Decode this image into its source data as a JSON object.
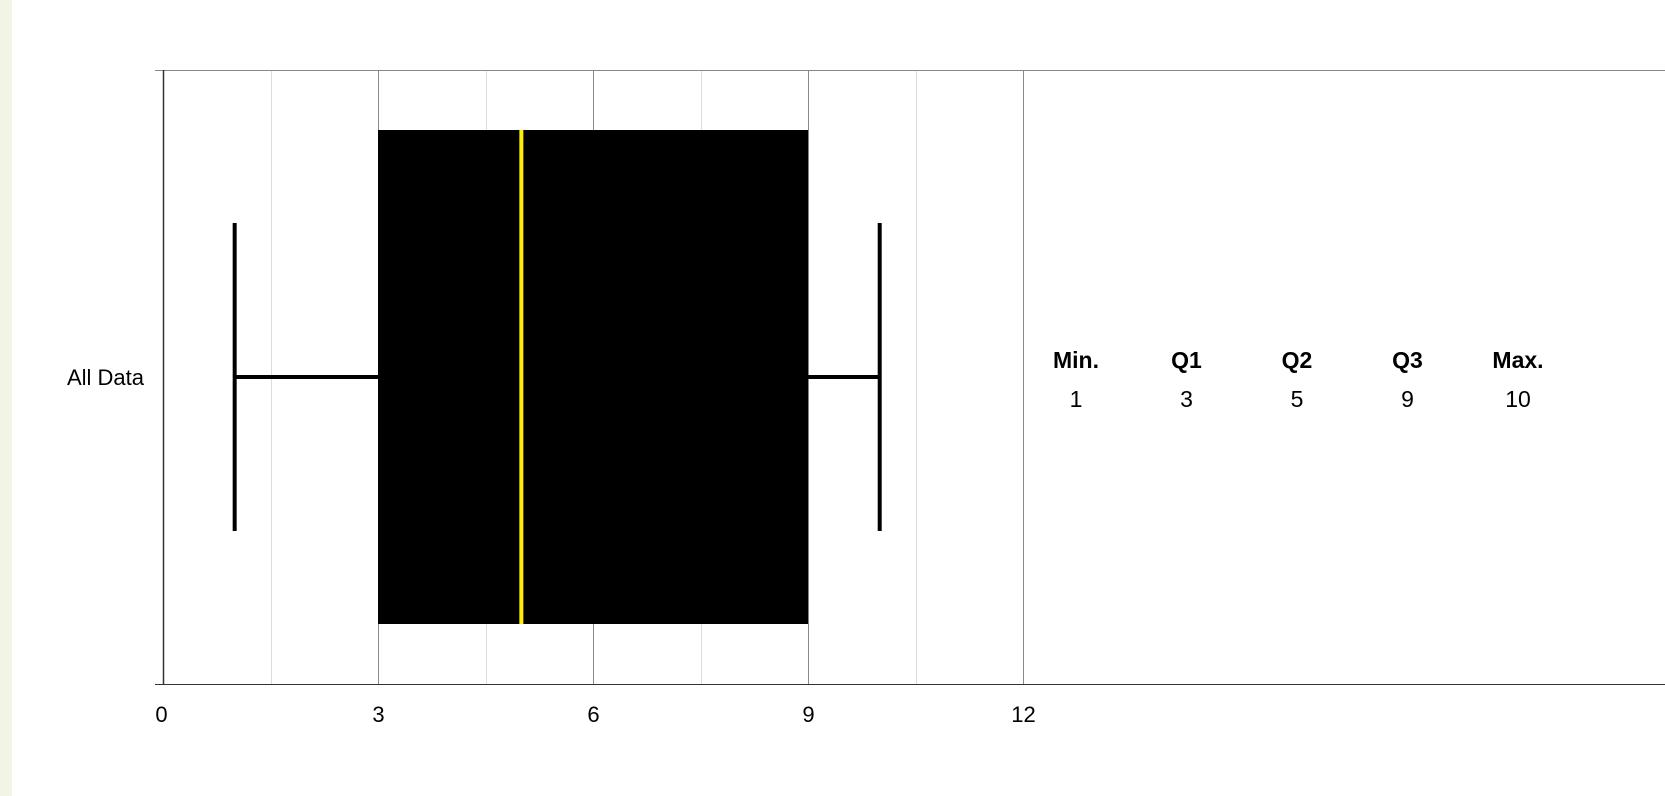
{
  "chart_data": {
    "type": "boxplot",
    "orientation": "horizontal",
    "category": "All Data",
    "x_ticks": [
      0,
      3,
      6,
      9,
      12
    ],
    "x_minor_ticks": [
      1.5,
      4.5,
      7.5,
      10.5
    ],
    "xlim": [
      0,
      12
    ],
    "grid": true,
    "min": 1,
    "q1": 3,
    "q2": 5,
    "q3": 9,
    "max": 10,
    "box_color": "#000000",
    "median_color": "#ffee00",
    "stats_table": {
      "headers": [
        "Min.",
        "Q1",
        "Q2",
        "Q3",
        "Max."
      ],
      "values": [
        "1",
        "3",
        "5",
        "9",
        "10"
      ]
    }
  }
}
